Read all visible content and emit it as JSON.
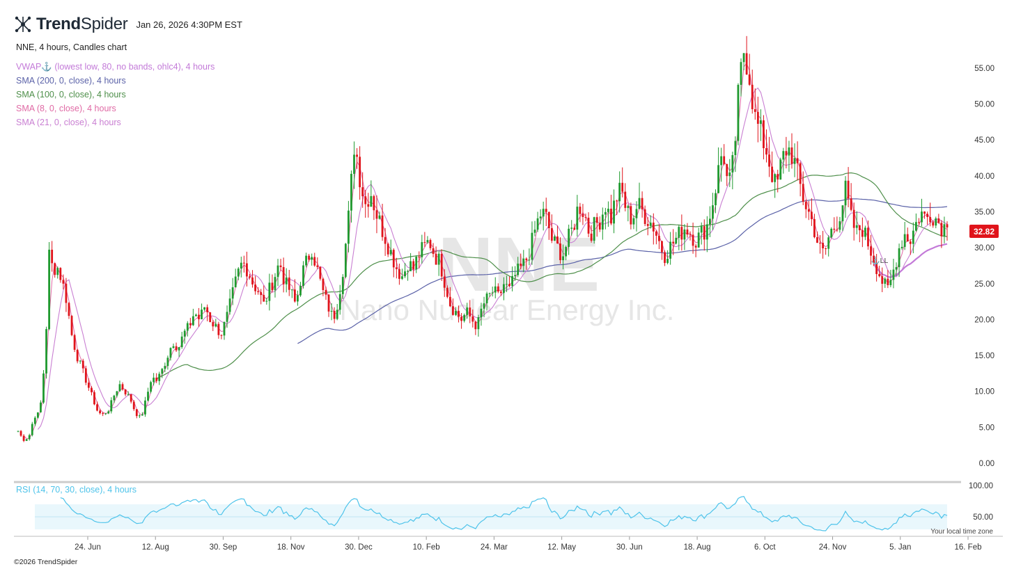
{
  "header": {
    "brand_bold": "Trend",
    "brand_light": "Spider",
    "timestamp": "Jan 26, 2026 4:30PM EST"
  },
  "symbol_line": "NNE, 4 hours, Candles chart",
  "indicators": [
    {
      "label": "VWAP⚓ (lowest low, 80, no bands, ohlc4), 4 hours",
      "color": "#c37ad8"
    },
    {
      "label": "SMA (200, 0, close), 4 hours",
      "color": "#5b62a8"
    },
    {
      "label": "SMA (100, 0, close), 4 hours",
      "color": "#4e8f4a"
    },
    {
      "label": "SMA (8, 0, close), 4 hours",
      "color": "#e06aa5"
    },
    {
      "label": "SMA (21, 0, close), 4 hours",
      "color": "#c97fd2"
    }
  ],
  "rsi_label": "RSI (14, 70, 30, close), 4 hours",
  "watermark": {
    "symbol": "NNE",
    "name": "Nano Nuclear Energy Inc."
  },
  "last_price": "32.82",
  "anchor_label": "⚓LL",
  "timezone_note": "Your local time zone",
  "copyright": "©2026 TrendSpider",
  "colors": {
    "up": "#1f9a2f",
    "down": "#e0141b",
    "price_tag": "#e0141b",
    "rsi_line": "#4dc3ea",
    "rsi_band": "#e9f7fc"
  },
  "chart_data": [
    {
      "type": "candlestick",
      "ticker": "NNE",
      "timeframe": "4 hours",
      "x_tick_labels": [
        "24. Jun",
        "12. Aug",
        "30. Sep",
        "18. Nov",
        "30. Dec",
        "10. Feb",
        "24. Mar",
        "12. May",
        "30. Jun",
        "18. Aug",
        "6. Oct",
        "24. Nov",
        "5. Jan",
        "16. Feb"
      ],
      "y_ticks": [
        0,
        5,
        10,
        15,
        20,
        25,
        30,
        35,
        40,
        45,
        50,
        55
      ],
      "y_tick_labels": [
        "0.00",
        "5.00",
        "10.00",
        "15.00",
        "20.00",
        "25.00",
        "30.00",
        "35.00",
        "40.00",
        "45.00",
        "50.00",
        "55.00"
      ],
      "ylim": [
        0,
        60
      ],
      "price_path": [
        [
          0,
          4.5
        ],
        [
          0.03,
          3.2
        ],
        [
          0.06,
          3.6
        ],
        [
          0.09,
          6.5
        ],
        [
          0.12,
          7.0
        ],
        [
          0.135,
          10
        ],
        [
          0.15,
          15
        ],
        [
          0.165,
          22
        ],
        [
          0.18,
          33
        ],
        [
          0.195,
          25
        ],
        [
          0.21,
          28
        ],
        [
          0.24,
          26
        ],
        [
          0.27,
          23
        ],
        [
          0.3,
          18
        ],
        [
          0.33,
          15
        ],
        [
          0.36,
          13
        ],
        [
          0.39,
          11
        ],
        [
          0.42,
          9
        ],
        [
          0.45,
          7
        ],
        [
          0.48,
          6.8
        ],
        [
          0.51,
          7.5
        ],
        [
          0.54,
          9.5
        ],
        [
          0.57,
          11
        ],
        [
          0.6,
          10
        ],
        [
          0.63,
          9
        ],
        [
          0.66,
          7
        ],
        [
          0.69,
          6.2
        ],
        [
          0.72,
          9
        ],
        [
          0.75,
          12
        ],
        [
          0.78,
          11.5
        ],
        [
          0.81,
          13
        ],
        [
          0.84,
          15
        ],
        [
          0.87,
          17
        ],
        [
          0.9,
          16
        ],
        [
          0.93,
          18
        ],
        [
          0.96,
          19
        ],
        [
          0.99,
          21
        ],
        [
          1.02,
          20
        ],
        [
          1.05,
          22
        ],
        [
          1.08,
          20
        ],
        [
          1.11,
          19
        ],
        [
          1.14,
          18
        ],
        [
          1.17,
          20
        ],
        [
          1.2,
          23
        ],
        [
          1.23,
          26
        ],
        [
          1.26,
          28
        ],
        [
          1.29,
          27
        ],
        [
          1.32,
          25
        ],
        [
          1.35,
          24
        ],
        [
          1.38,
          22
        ],
        [
          1.41,
          24
        ],
        [
          1.44,
          26
        ],
        [
          1.47,
          28
        ],
        [
          1.5,
          25
        ],
        [
          1.53,
          24
        ],
        [
          1.56,
          22
        ],
        [
          1.59,
          26
        ],
        [
          1.62,
          28
        ],
        [
          1.65,
          30
        ],
        [
          1.68,
          27
        ],
        [
          1.71,
          24
        ],
        [
          1.74,
          22
        ],
        [
          1.77,
          20
        ],
        [
          1.8,
          23
        ],
        [
          1.83,
          28
        ],
        [
          1.86,
          35
        ],
        [
          1.89,
          45
        ],
        [
          1.92,
          40
        ],
        [
          1.95,
          36
        ],
        [
          1.98,
          38
        ],
        [
          2.01,
          35
        ],
        [
          2.04,
          33
        ],
        [
          2.07,
          31
        ],
        [
          2.1,
          29
        ],
        [
          2.13,
          27
        ],
        [
          2.16,
          26
        ],
        [
          2.19,
          28
        ],
        [
          2.22,
          27
        ],
        [
          2.25,
          29
        ],
        [
          2.28,
          30
        ],
        [
          2.31,
          31
        ],
        [
          2.34,
          29
        ],
        [
          2.37,
          28
        ],
        [
          2.4,
          25
        ],
        [
          2.43,
          22
        ],
        [
          2.46,
          21
        ],
        [
          2.49,
          20
        ],
        [
          2.52,
          21
        ],
        [
          2.55,
          20
        ],
        [
          2.58,
          19
        ],
        [
          2.61,
          22
        ],
        [
          2.64,
          23
        ],
        [
          2.67,
          24
        ],
        [
          2.7,
          23
        ],
        [
          2.73,
          25
        ],
        [
          2.76,
          24
        ],
        [
          2.79,
          26
        ],
        [
          2.82,
          27
        ],
        [
          2.85,
          28
        ],
        [
          2.88,
          30
        ],
        [
          2.91,
          33
        ],
        [
          2.94,
          35
        ],
        [
          2.97,
          34
        ],
        [
          3.0,
          31
        ],
        [
          3.03,
          30
        ],
        [
          3.06,
          29
        ],
        [
          3.09,
          31
        ],
        [
          3.12,
          33
        ],
        [
          3.15,
          36
        ],
        [
          3.18,
          35
        ],
        [
          3.21,
          32
        ],
        [
          3.24,
          33
        ],
        [
          3.27,
          34
        ],
        [
          3.3,
          36
        ],
        [
          3.33,
          34
        ],
        [
          3.36,
          37
        ],
        [
          3.39,
          38
        ],
        [
          3.42,
          35
        ],
        [
          3.45,
          34
        ],
        [
          3.48,
          36
        ],
        [
          3.51,
          35
        ],
        [
          3.54,
          34
        ],
        [
          3.57,
          33
        ],
        [
          3.6,
          31
        ],
        [
          3.63,
          29
        ],
        [
          3.66,
          30
        ],
        [
          3.69,
          31
        ],
        [
          3.72,
          32
        ],
        [
          3.75,
          33
        ],
        [
          3.78,
          32
        ],
        [
          3.81,
          31
        ],
        [
          3.84,
          32
        ],
        [
          3.87,
          33
        ],
        [
          3.9,
          36
        ],
        [
          3.93,
          40
        ],
        [
          3.96,
          44
        ],
        [
          3.99,
          38
        ],
        [
          4.02,
          42
        ],
        [
          4.05,
          52
        ],
        [
          4.08,
          58
        ],
        [
          4.11,
          54
        ],
        [
          4.14,
          48
        ],
        [
          4.17,
          46
        ],
        [
          4.2,
          44
        ],
        [
          4.23,
          41
        ],
        [
          4.26,
          38
        ],
        [
          4.29,
          42
        ],
        [
          4.32,
          44
        ],
        [
          4.35,
          43
        ],
        [
          4.38,
          40
        ],
        [
          4.41,
          37
        ],
        [
          4.44,
          35
        ],
        [
          4.47,
          33
        ],
        [
          4.5,
          30
        ],
        [
          4.53,
          29
        ],
        [
          4.56,
          32
        ],
        [
          4.59,
          33
        ],
        [
          4.62,
          35
        ],
        [
          4.65,
          38
        ],
        [
          4.68,
          34
        ],
        [
          4.71,
          32
        ],
        [
          4.74,
          33
        ],
        [
          4.77,
          31
        ],
        [
          4.8,
          29
        ],
        [
          4.83,
          27
        ],
        [
          4.86,
          25
        ],
        [
          4.89,
          24
        ],
        [
          4.92,
          27
        ],
        [
          4.95,
          30
        ],
        [
          4.98,
          32
        ],
        [
          5.01,
          31
        ],
        [
          5.04,
          33
        ],
        [
          5.07,
          35
        ],
        [
          5.1,
          34
        ],
        [
          5.13,
          35
        ],
        [
          5.16,
          34
        ],
        [
          5.19,
          33
        ],
        [
          5.22,
          32.82
        ]
      ],
      "last_close": 32.82,
      "annotations": [
        "VWAP anchor near 24. Nov"
      ]
    },
    {
      "type": "line",
      "name": "RSI (14, 70, 30, close), 4 hours",
      "y_ticks": [
        50,
        100
      ],
      "y_tick_labels": [
        "50.00",
        "100.00"
      ],
      "ylim": [
        20,
        100
      ],
      "bands": [
        30,
        70
      ],
      "midline": 50
    }
  ]
}
